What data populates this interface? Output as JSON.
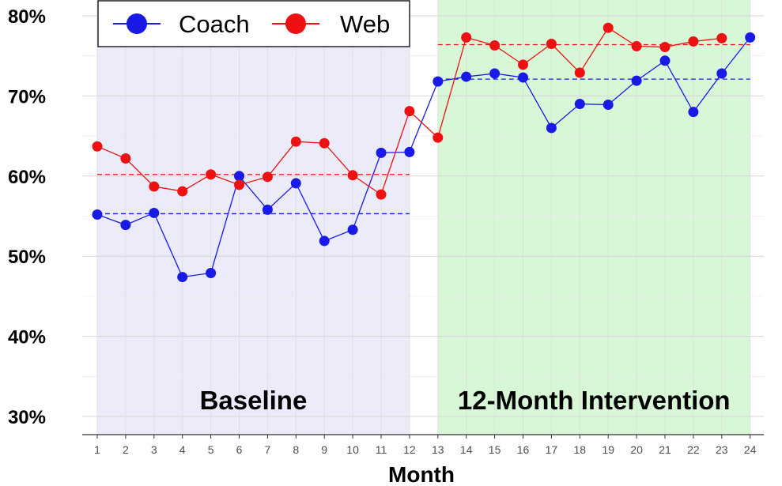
{
  "chart_data": {
    "type": "line",
    "title": "",
    "xlabel": "Month",
    "ylabel": "",
    "x": [
      1,
      2,
      3,
      4,
      5,
      6,
      7,
      8,
      9,
      10,
      11,
      12,
      13,
      14,
      15,
      16,
      17,
      18,
      19,
      20,
      21,
      22,
      23,
      24
    ],
    "ylim": [
      29,
      81
    ],
    "yticks": [
      30,
      40,
      50,
      60,
      70,
      80
    ],
    "ytick_labels": [
      "30%",
      "40%",
      "50%",
      "60%",
      "70%",
      "80%"
    ],
    "grid": true,
    "legend_position": "top-left",
    "regions": [
      {
        "label": "Baseline",
        "x_start": 1,
        "x_end": 12,
        "color": "#ebebfa"
      },
      {
        "label": "12-Month Intervention",
        "x_start": 13,
        "x_end": 24,
        "color": "#d7f7d7"
      }
    ],
    "series": [
      {
        "name": "Coach",
        "color": "#1a1ae6",
        "values": [
          55.2,
          53.9,
          55.4,
          47.4,
          47.9,
          60.0,
          55.8,
          59.1,
          51.9,
          53.3,
          62.9,
          63.0,
          71.8,
          72.4,
          72.8,
          72.3,
          66.0,
          69.0,
          68.9,
          71.9,
          74.4,
          68.0,
          72.8,
          77.3
        ],
        "reference_lines": [
          {
            "value": 55.3,
            "x_start": 1,
            "x_end": 12
          },
          {
            "value": 72.1,
            "x_start": 13,
            "x_end": 24
          }
        ]
      },
      {
        "name": "Web",
        "color": "#ee1111",
        "values": [
          63.7,
          62.2,
          58.7,
          58.1,
          60.2,
          58.9,
          59.9,
          64.3,
          64.1,
          60.1,
          57.7,
          68.1,
          64.8,
          77.3,
          76.3,
          73.9,
          76.5,
          72.9,
          78.5,
          76.2,
          76.1,
          76.8,
          77.2,
          null
        ],
        "reference_lines": [
          {
            "value": 60.2,
            "x_start": 1,
            "x_end": 12
          },
          {
            "value": 76.4,
            "x_start": 13,
            "x_end": 24
          }
        ]
      }
    ]
  }
}
